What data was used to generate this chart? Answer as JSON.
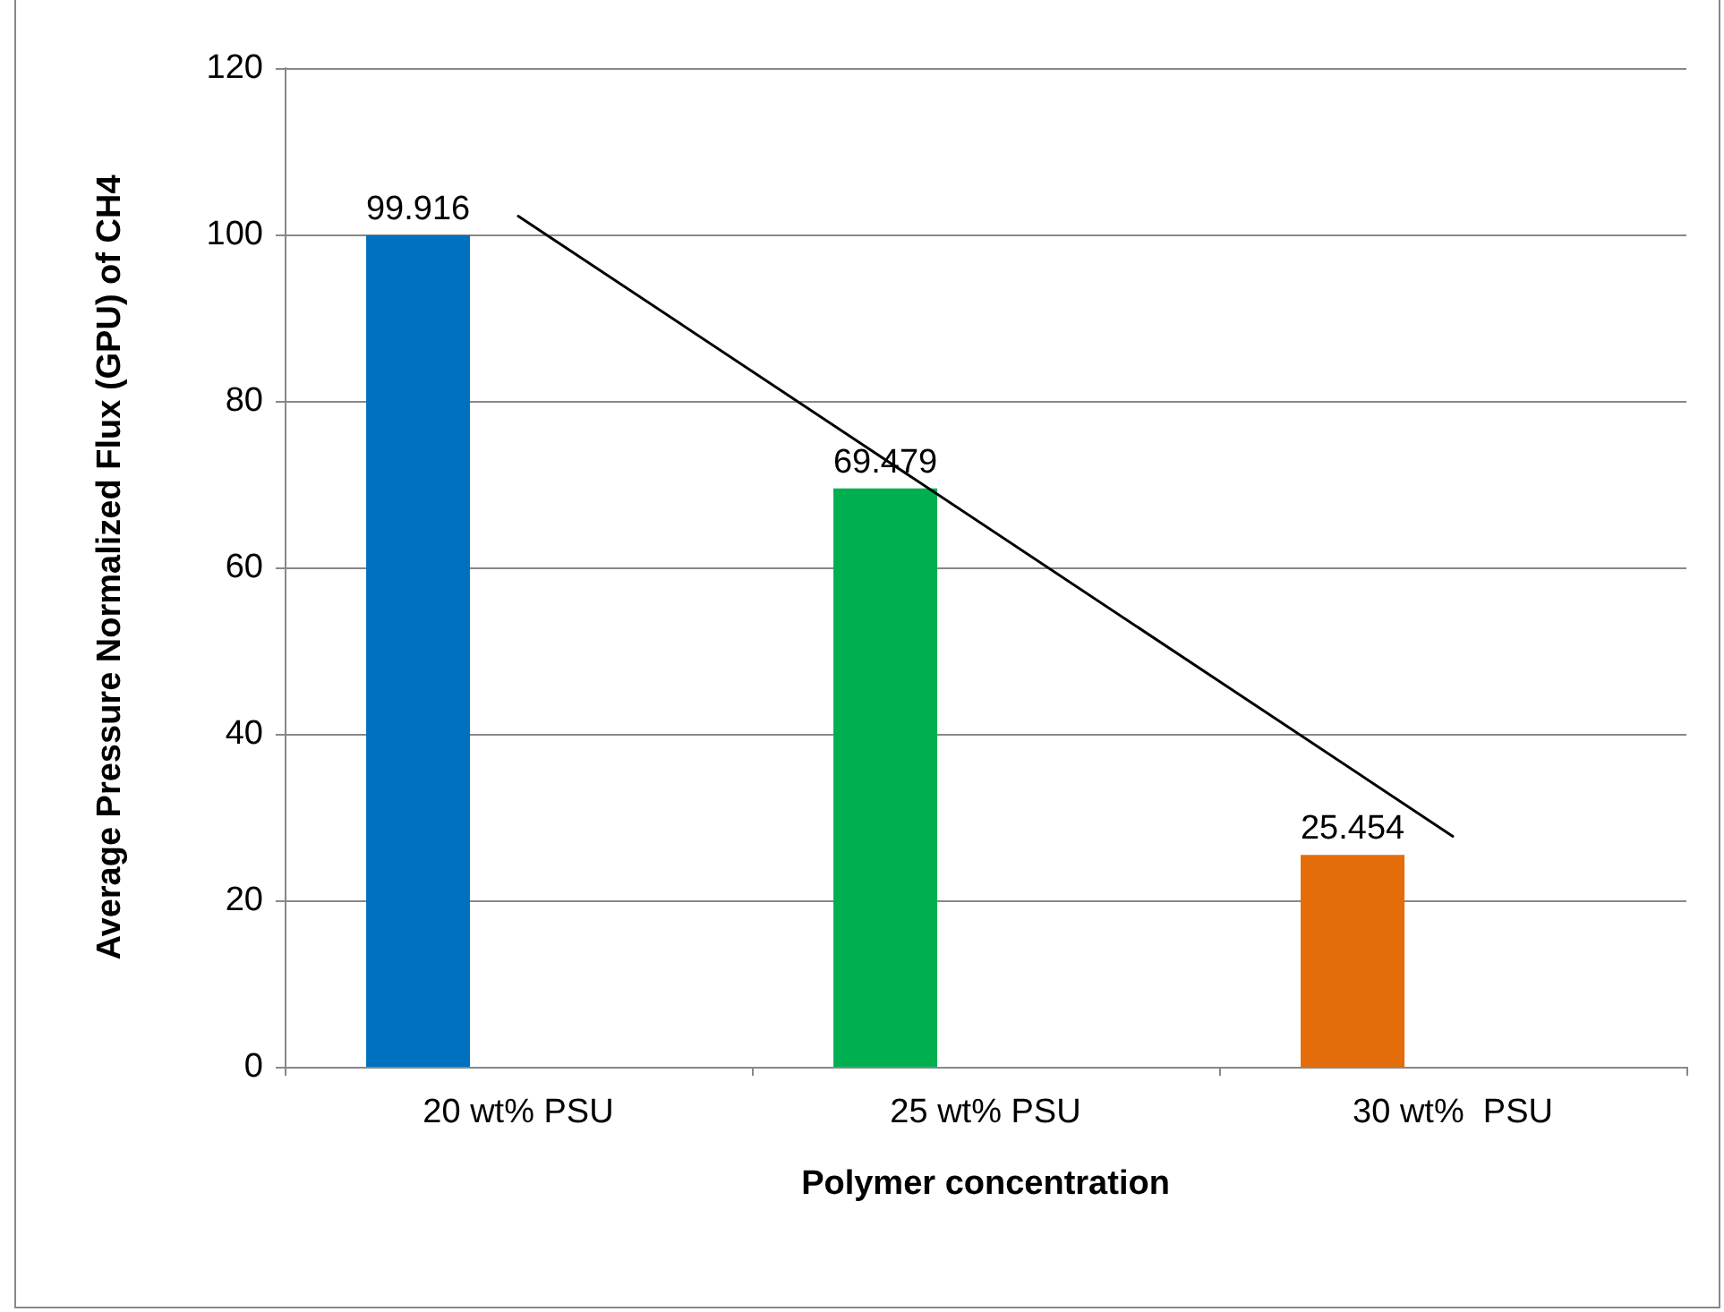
{
  "chart_data": {
    "type": "bar",
    "xlabel": "Polymer concentration",
    "ylabel": "Average Pressure Normalized Flux (GPU) of CH4",
    "categories": [
      "20 wt% PSU",
      "25 wt% PSU",
      "30 wt%  PSU"
    ],
    "series": [
      {
        "type": "bar",
        "colors": [
          "#0070c0",
          "#00b050",
          "#e46c0a"
        ],
        "values": [
          99.916,
          69.479,
          25.454
        ],
        "value_labels": [
          "99.916",
          "69.479",
          "25.454"
        ]
      },
      {
        "type": "line",
        "color": "#000000",
        "x": [
          "20 wt% PSU",
          "30 wt%  PSU"
        ],
        "values": [
          102.2,
          27.7
        ]
      }
    ],
    "ylim": [
      0,
      120
    ],
    "yticks": [
      0,
      20,
      40,
      60,
      80,
      100,
      120
    ],
    "grid": "y",
    "marker": "none",
    "line_style": "solid"
  }
}
